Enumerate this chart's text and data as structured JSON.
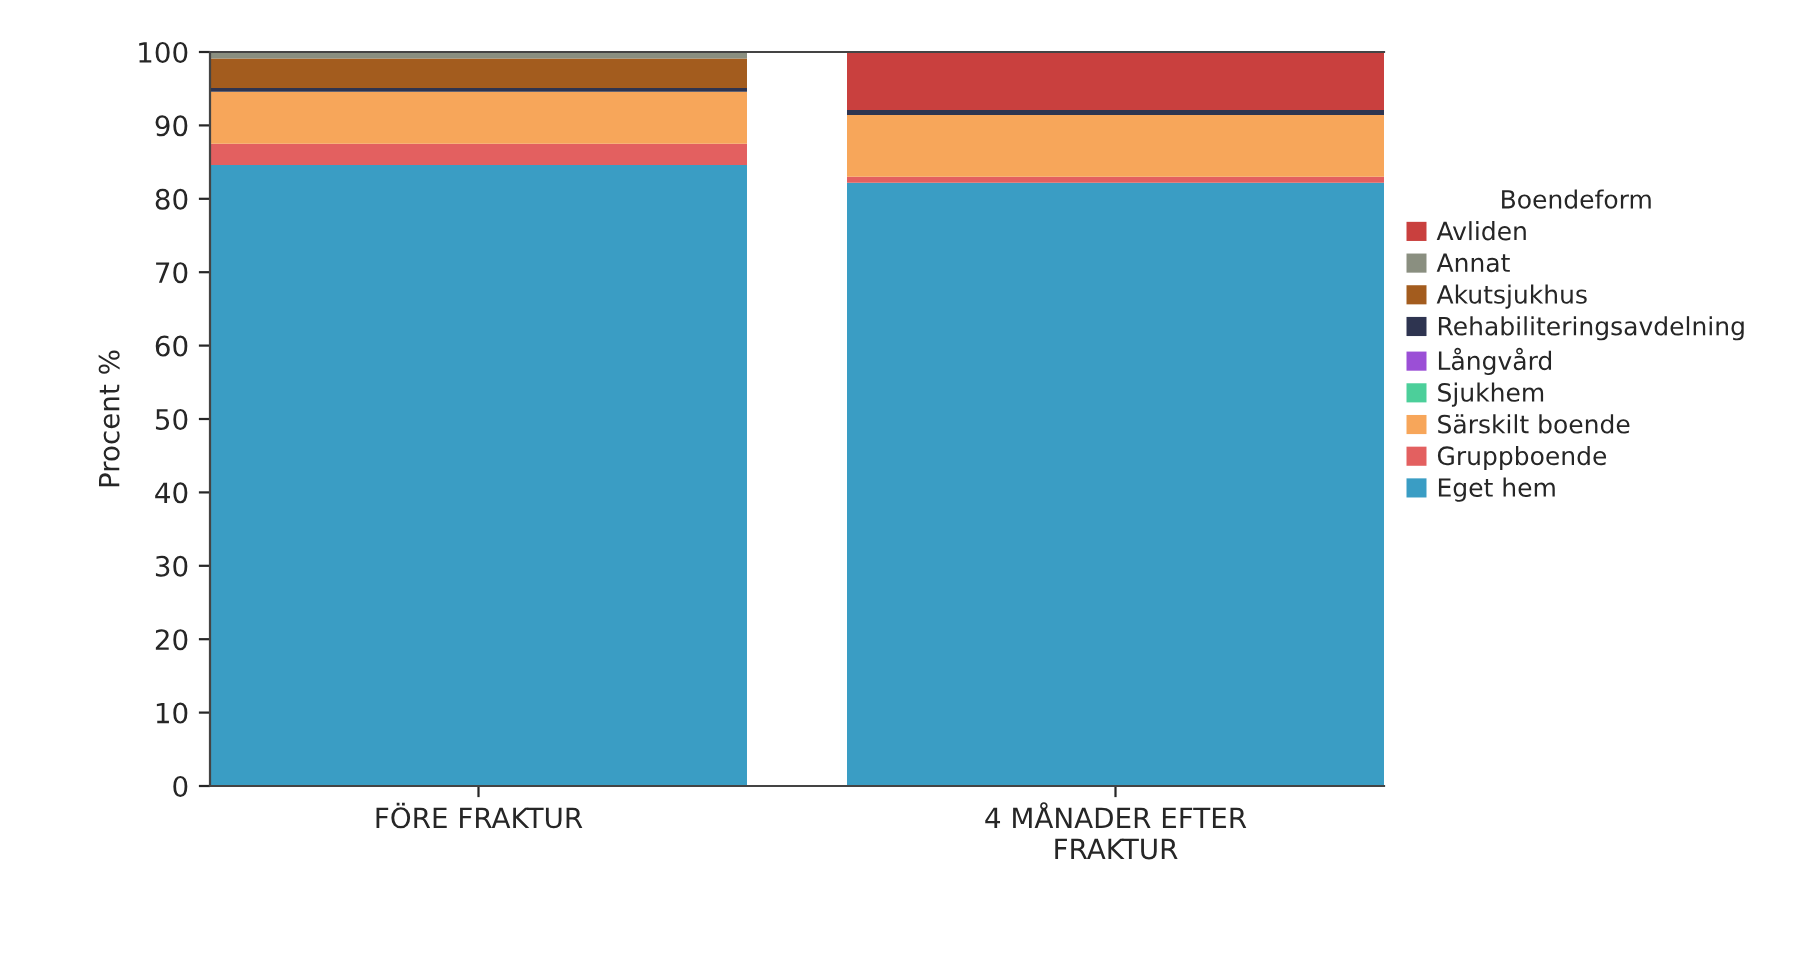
{
  "chart_data": {
    "type": "bar",
    "stacked": true,
    "ylabel": "Procent %",
    "legend_title": "Boendeform",
    "legend": "right",
    "categories": [
      "FÖRE FRAKTUR",
      "4 MÅNADER EFTER\nFRAKTUR"
    ],
    "ylim": [
      0,
      100
    ],
    "yticks": [
      0,
      10,
      20,
      30,
      40,
      50,
      60,
      70,
      80,
      90,
      100
    ],
    "grid": false,
    "series": [
      {
        "name": "Eget hem",
        "color": "#3a9dc4",
        "values": [
          84.6,
          82.2
        ]
      },
      {
        "name": "Gruppboende",
        "color": "#e36060",
        "values": [
          2.9,
          0.8
        ]
      },
      {
        "name": "Särskilt boende",
        "color": "#f7a65a",
        "values": [
          7.1,
          8.4
        ]
      },
      {
        "name": "Sjukhem",
        "color": "#4ccf9a",
        "values": [
          0,
          0
        ]
      },
      {
        "name": "Långvård",
        "color": "#9b4fd6",
        "values": [
          0,
          0
        ]
      },
      {
        "name": "Rehabiliteringsavdelning",
        "color": "#2e3450",
        "values": [
          0.5,
          0.7
        ]
      },
      {
        "name": "Akutsjukhus",
        "color": "#a35c1e",
        "values": [
          4.0,
          0
        ]
      },
      {
        "name": "Annat",
        "color": "#8a8f80",
        "values": [
          0.9,
          0
        ]
      },
      {
        "name": "Avliden",
        "color": "#c9403e",
        "values": [
          0,
          7.9
        ]
      }
    ]
  }
}
